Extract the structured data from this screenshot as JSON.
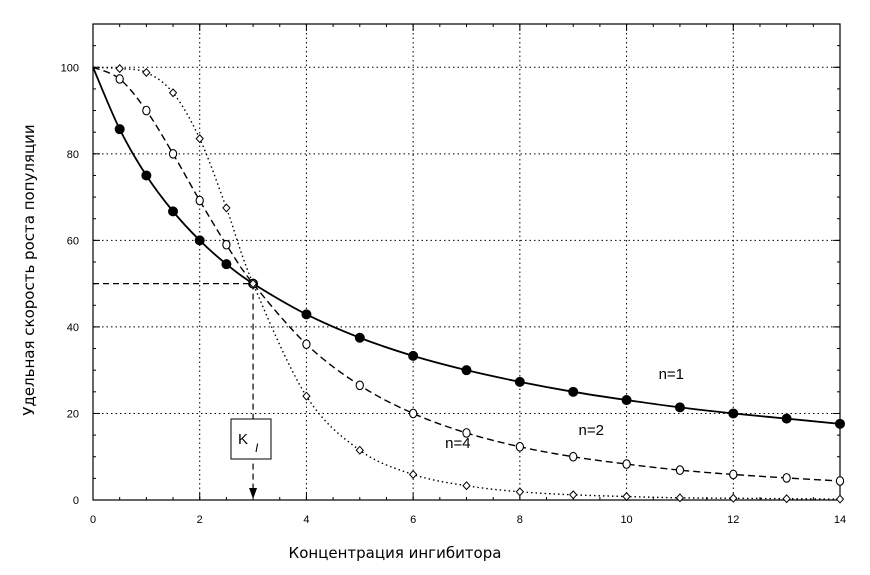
{
  "chart_data": {
    "type": "line",
    "xlabel": "Концентрация ингибитора",
    "ylabel": "Удельная скорость роста популяции",
    "xlim": [
      0,
      14
    ],
    "ylim": [
      0,
      110
    ],
    "xticks": [
      0,
      2,
      4,
      6,
      8,
      10,
      12,
      14
    ],
    "yticks": [
      0,
      20,
      40,
      60,
      80,
      100
    ],
    "grid": true,
    "series": [
      {
        "name": "n=1",
        "x": [
          0,
          0.5,
          1,
          1.5,
          2,
          2.5,
          3,
          4,
          5,
          6,
          7,
          8,
          9,
          10,
          11,
          12,
          13,
          14
        ],
        "values": [
          100,
          85.7,
          75,
          66.7,
          60,
          54.5,
          50,
          42.9,
          37.5,
          33.3,
          30,
          27.3,
          25,
          23.1,
          21.4,
          20,
          18.8,
          17.6
        ],
        "style": "solid",
        "marker": "filled-circle"
      },
      {
        "name": "n=2",
        "x": [
          0,
          0.5,
          1,
          1.5,
          2,
          2.5,
          3,
          4,
          5,
          6,
          7,
          8,
          9,
          10,
          11,
          12,
          13,
          14
        ],
        "values": [
          100,
          97.3,
          90,
          80,
          69.2,
          59,
          50,
          36,
          26.5,
          20,
          15.5,
          12.3,
          10,
          8.3,
          6.9,
          5.9,
          5.1,
          4.4
        ],
        "style": "dashed",
        "marker": "open-circle"
      },
      {
        "name": "n=4",
        "x": [
          0,
          0.5,
          1,
          1.5,
          2,
          2.5,
          3,
          4,
          5,
          6,
          7,
          8,
          9,
          10,
          11,
          12,
          13,
          14
        ],
        "values": [
          100,
          99.7,
          98.8,
          94.1,
          83.5,
          67.5,
          50,
          24.0,
          11.5,
          5.9,
          3.3,
          1.9,
          1.2,
          0.8,
          0.5,
          0.4,
          0.3,
          0.2
        ],
        "style": "dotted",
        "marker": "open-diamond"
      }
    ],
    "annotations": {
      "ki_label": "K",
      "ki_subscript": "I",
      "ki_x": 3,
      "half_level": 50
    }
  }
}
